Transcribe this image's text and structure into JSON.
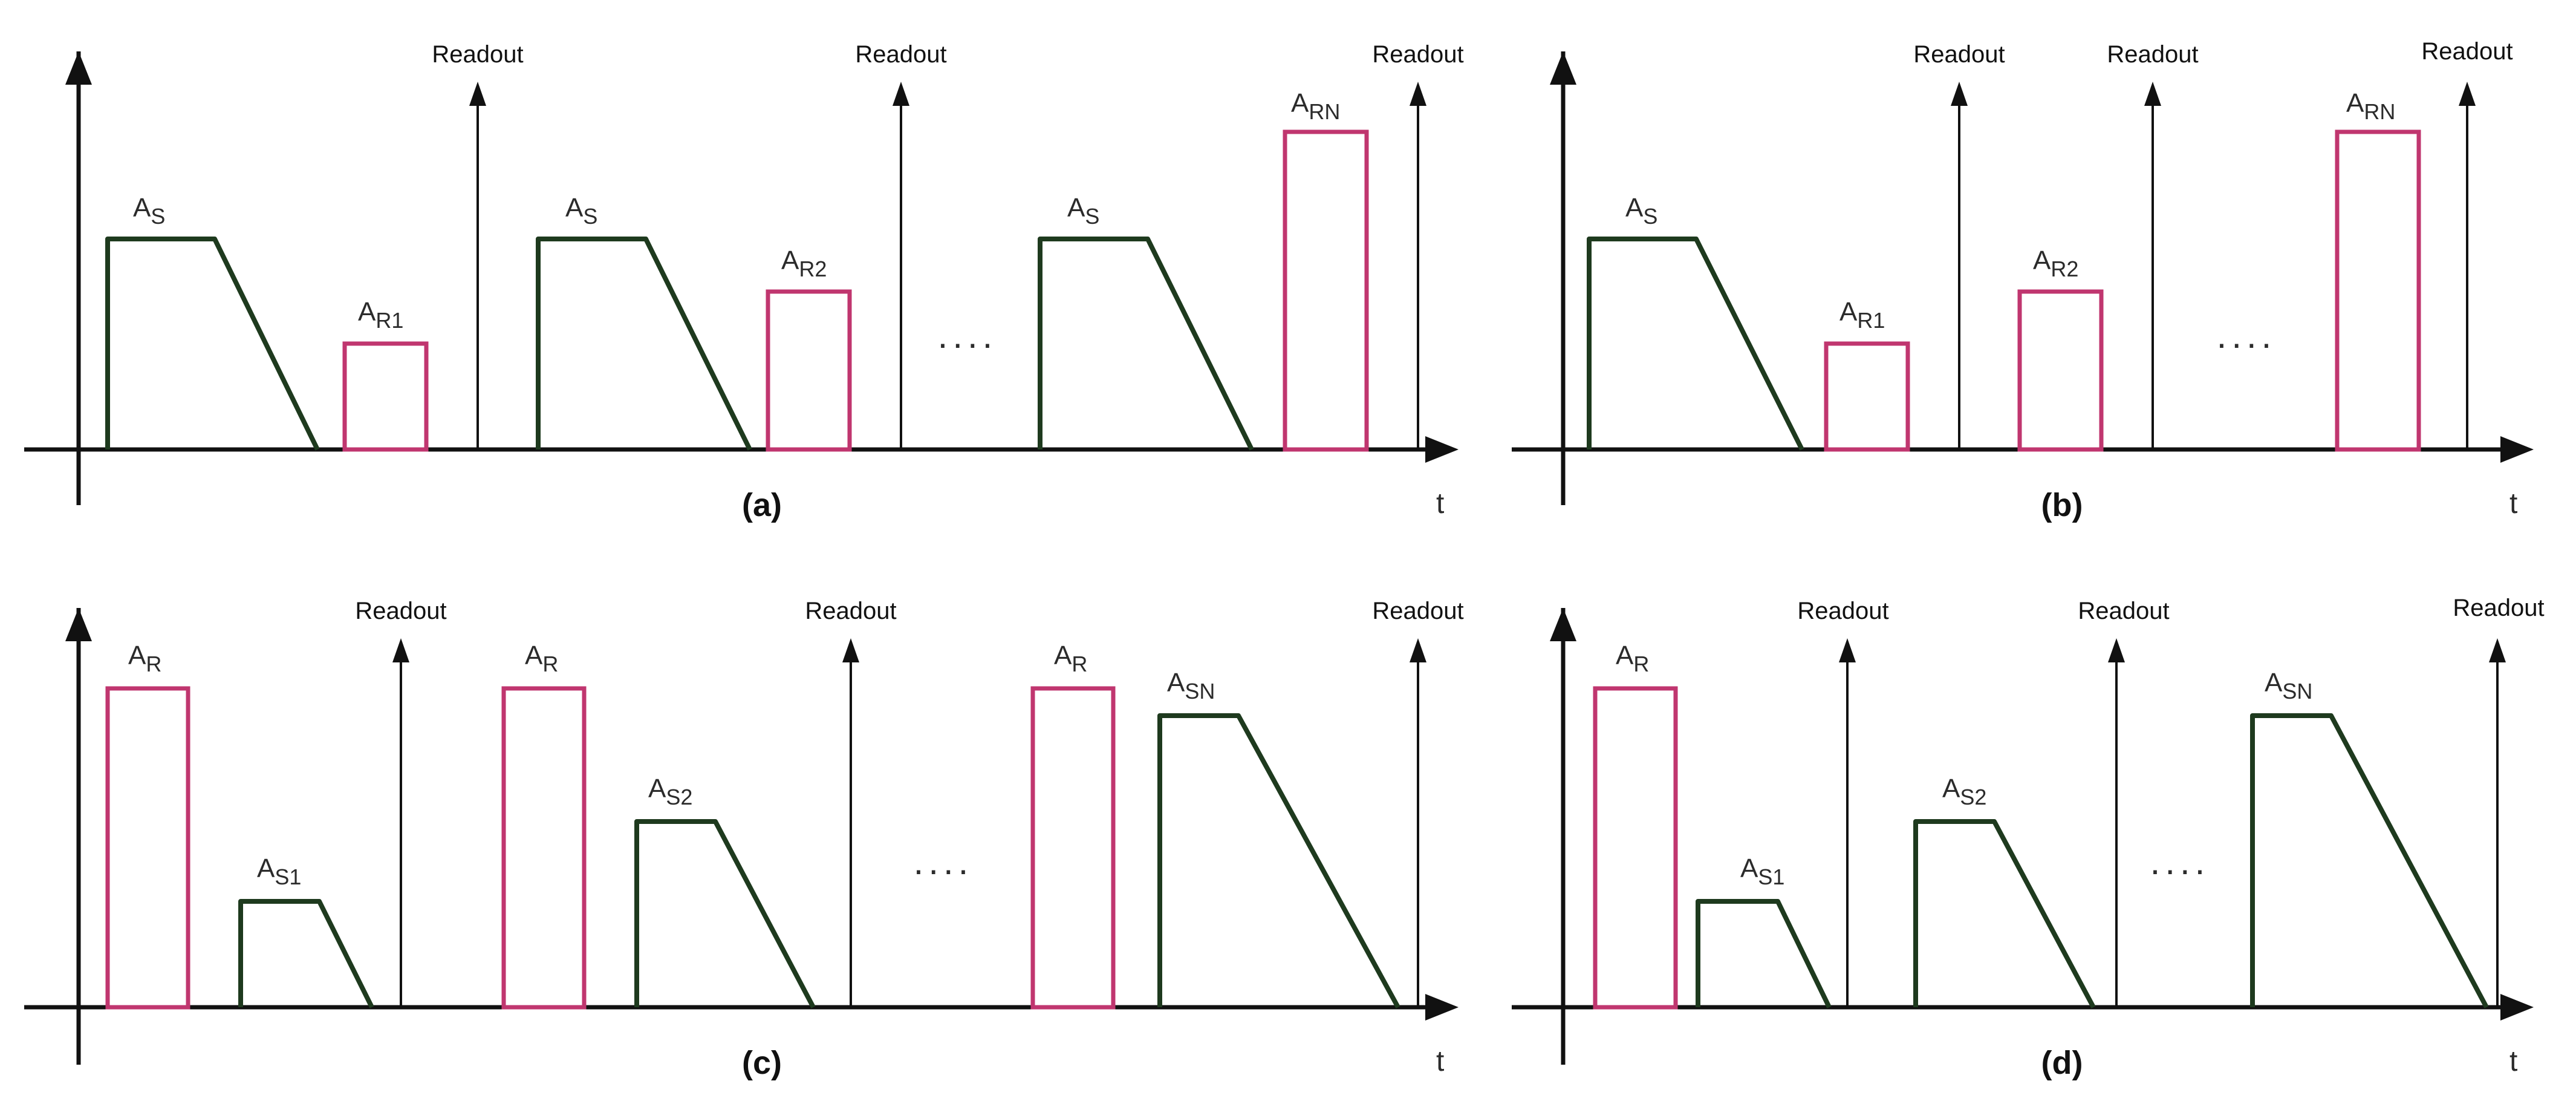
{
  "colors": {
    "axis": "#111111",
    "signal_pulse": "#1e3a1e",
    "reference_pulse": "#c0366f",
    "text": "#2b2b2b"
  },
  "panels": [
    {
      "caption": "(a)",
      "axis_label": "t",
      "readout_labels": [
        "Readout",
        "Readout",
        "Readout"
      ],
      "pulse_labels": [
        {
          "base": "A",
          "sub": "S"
        },
        {
          "base": "A",
          "sub": "R1"
        },
        {
          "base": "A",
          "sub": "S"
        },
        {
          "base": "A",
          "sub": "R2"
        },
        {
          "base": "A",
          "sub": "S"
        },
        {
          "base": "A",
          "sub": "RN"
        }
      ],
      "ellipsis": "...."
    },
    {
      "caption": "(b)",
      "axis_label": "t",
      "readout_labels": [
        "Readout",
        "Readout",
        "Readout"
      ],
      "pulse_labels": [
        {
          "base": "A",
          "sub": "S"
        },
        {
          "base": "A",
          "sub": "R1"
        },
        {
          "base": "A",
          "sub": "R2"
        },
        {
          "base": "A",
          "sub": "RN"
        }
      ],
      "ellipsis": "...."
    },
    {
      "caption": "(c)",
      "axis_label": "t",
      "readout_labels": [
        "Readout",
        "Readout",
        "Readout"
      ],
      "pulse_labels": [
        {
          "base": "A",
          "sub": "R"
        },
        {
          "base": "A",
          "sub": "S1"
        },
        {
          "base": "A",
          "sub": "R"
        },
        {
          "base": "A",
          "sub": "S2"
        },
        {
          "base": "A",
          "sub": "R"
        },
        {
          "base": "A",
          "sub": "SN"
        }
      ],
      "ellipsis": "...."
    },
    {
      "caption": "(d)",
      "axis_label": "t",
      "readout_labels": [
        "Readout",
        "Readout",
        "Readout"
      ],
      "pulse_labels": [
        {
          "base": "A",
          "sub": "R"
        },
        {
          "base": "A",
          "sub": "S1"
        },
        {
          "base": "A",
          "sub": "S2"
        },
        {
          "base": "A",
          "sub": "SN"
        }
      ],
      "ellipsis": "...."
    }
  ]
}
